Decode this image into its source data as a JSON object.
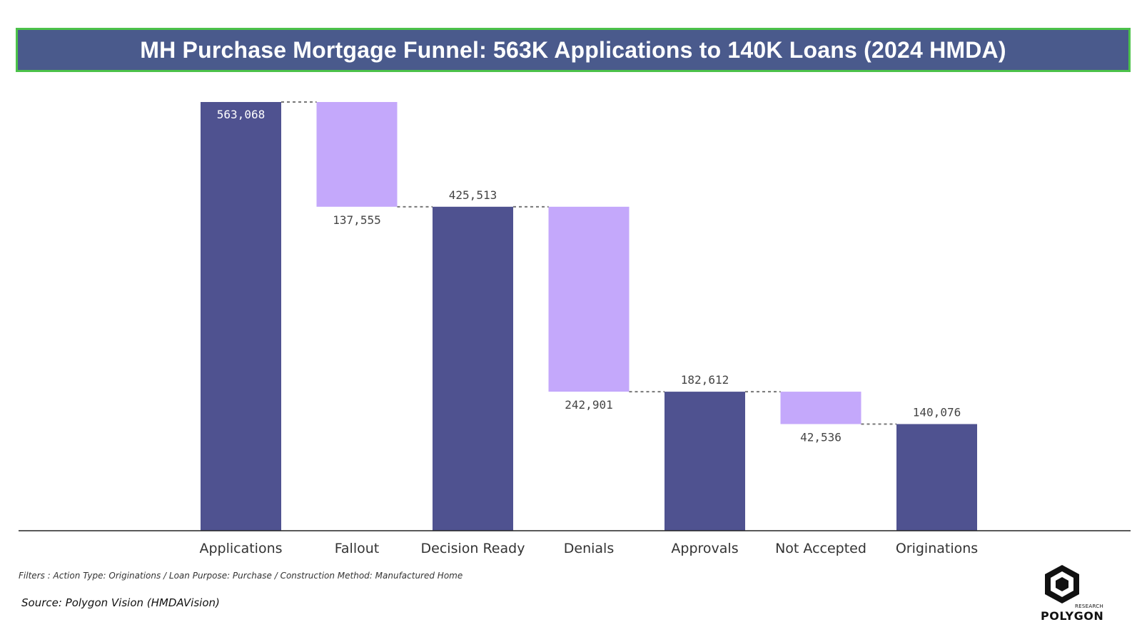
{
  "title": "MH Purchase Mortgage Funnel: 563K Applications to 140K Loans (2024 HMDA)",
  "filters": "Filters : Action Type: Originations / Loan Purpose: Purchase / Construction Method: Manufactured Home",
  "source": "Source: Polygon Vision (HMDAVision)",
  "logo": {
    "small_text": "RESEARCH",
    "wordmark": "POLYGON",
    "icon": "polygon-cube-icon"
  },
  "colors": {
    "total": "#4f5290",
    "decrease": "#c4a8fb",
    "title_bg": "#4a5a8c",
    "title_border": "#4cc24a"
  },
  "chart_data": {
    "type": "bar",
    "subtype": "waterfall",
    "title": "MH Purchase Mortgage Funnel: 563K Applications to 140K Loans (2024 HMDA)",
    "categories": [
      "Applications",
      "Fallout",
      "Decision Ready",
      "Denials",
      "Approvals",
      "Not Accepted",
      "Originations"
    ],
    "values": [
      563068,
      137555,
      425513,
      242901,
      182612,
      42536,
      140076
    ],
    "labels": [
      "563,068",
      "137,555",
      "425,513",
      "242,901",
      "182,612",
      "42,536",
      "140,076"
    ],
    "kinds": [
      "total",
      "decrease",
      "total",
      "decrease",
      "total",
      "decrease",
      "total"
    ],
    "ylim": [
      0,
      563068
    ],
    "grid": false,
    "legend": "none"
  }
}
